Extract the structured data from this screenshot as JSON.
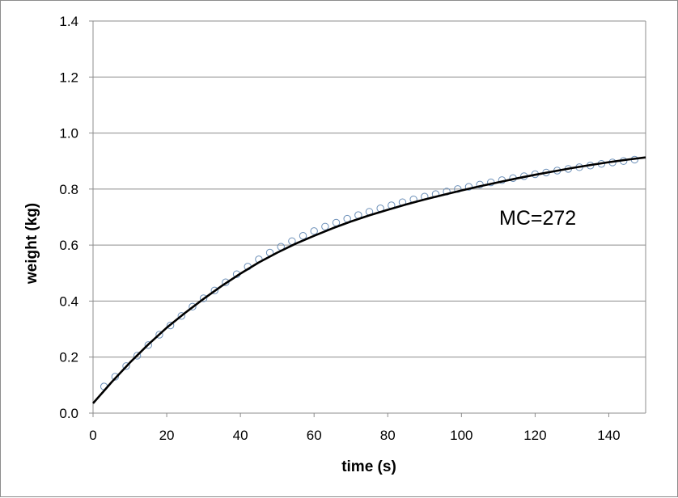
{
  "chart_data": {
    "type": "scatter",
    "title": "",
    "xlabel": "time (s)",
    "ylabel": "weight (kg)",
    "xlim": [
      0,
      150
    ],
    "ylim": [
      0,
      1.4
    ],
    "x_ticks": [
      "0",
      "20",
      "40",
      "60",
      "80",
      "100",
      "120",
      "140"
    ],
    "y_ticks": [
      "0.0",
      "0.2",
      "0.4",
      "0.6",
      "0.8",
      "1.0",
      "1.2",
      "1.4"
    ],
    "grid": "horizontal",
    "annotation": "MC=272",
    "colors": {
      "markers": "#6b8fb8",
      "fit_line": "#000000",
      "grid": "#8c8c8c"
    },
    "series": [
      {
        "kind": "markers",
        "x": [
          3,
          6,
          9,
          12,
          15,
          18,
          21,
          24,
          27,
          30,
          33,
          36,
          39,
          42,
          45,
          48,
          51,
          54,
          57,
          60,
          63,
          66,
          69,
          72,
          75,
          78,
          81,
          84,
          87,
          90,
          93,
          96,
          99,
          102,
          105,
          108,
          111,
          114,
          117,
          120,
          123,
          126,
          129,
          132,
          135,
          138,
          141,
          144,
          147
        ],
        "y": [
          0.095,
          0.13,
          0.168,
          0.205,
          0.243,
          0.28,
          0.313,
          0.347,
          0.38,
          0.41,
          0.438,
          0.467,
          0.496,
          0.523,
          0.549,
          0.573,
          0.594,
          0.614,
          0.633,
          0.65,
          0.666,
          0.68,
          0.694,
          0.707,
          0.719,
          0.731,
          0.742,
          0.753,
          0.763,
          0.773,
          0.782,
          0.791,
          0.8,
          0.808,
          0.816,
          0.824,
          0.832,
          0.839,
          0.846,
          0.853,
          0.859,
          0.866,
          0.872,
          0.878,
          0.884,
          0.89,
          0.895,
          0.9,
          0.905
        ]
      },
      {
        "kind": "line",
        "x": [
          0,
          5,
          10,
          15,
          20,
          25,
          30,
          35,
          40,
          45,
          50,
          55,
          60,
          65,
          70,
          75,
          80,
          85,
          90,
          95,
          100,
          105,
          110,
          115,
          120,
          125,
          130,
          135,
          140,
          145,
          150
        ],
        "y": [
          0.035,
          0.11,
          0.18,
          0.245,
          0.305,
          0.358,
          0.408,
          0.455,
          0.498,
          0.538,
          0.573,
          0.605,
          0.633,
          0.66,
          0.684,
          0.706,
          0.726,
          0.745,
          0.763,
          0.779,
          0.795,
          0.81,
          0.824,
          0.838,
          0.851,
          0.863,
          0.875,
          0.886,
          0.896,
          0.905,
          0.913
        ]
      }
    ]
  }
}
